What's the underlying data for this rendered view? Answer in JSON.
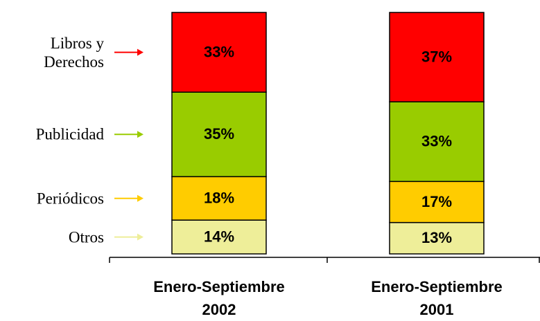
{
  "chart_data": {
    "type": "stacked_bar",
    "categories": [
      "Enero-Septiembre 2002",
      "Enero-Septiembre 2001"
    ],
    "ylim": [
      0,
      100
    ],
    "series": [
      {
        "name": "Otros",
        "color": "#eeee99",
        "values": [
          14,
          13
        ],
        "value_labels": [
          "14%",
          "13%"
        ]
      },
      {
        "name": "Periódicos",
        "color": "#ffcc00",
        "values": [
          18,
          17
        ],
        "value_labels": [
          "18%",
          "17%"
        ]
      },
      {
        "name": "Publicidad",
        "color": "#99cc00",
        "values": [
          35,
          33
        ],
        "value_labels": [
          "35%",
          "33%"
        ]
      },
      {
        "name": "Libros y Derechos",
        "color": "#ff0000",
        "values": [
          33,
          37
        ],
        "value_labels": [
          "33%",
          "37%"
        ]
      }
    ]
  }
}
